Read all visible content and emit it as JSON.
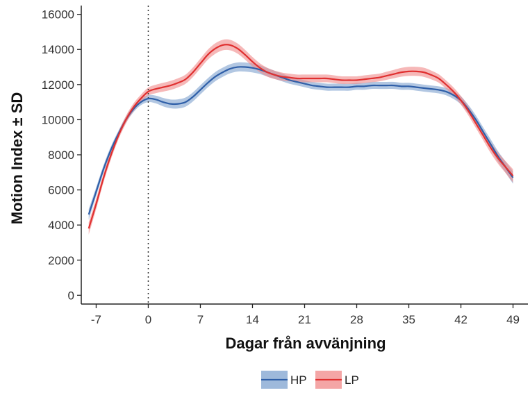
{
  "chart_data": {
    "type": "line",
    "xlabel": "Dagar från avvänjning",
    "ylabel": "Motion Index ± SD",
    "xlim": [
      -9,
      51
    ],
    "ylim": [
      -500,
      16500
    ],
    "x_ticks": [
      -7,
      0,
      7,
      14,
      21,
      28,
      35,
      42,
      49
    ],
    "y_ticks": [
      0,
      2000,
      4000,
      6000,
      8000,
      10000,
      12000,
      14000,
      16000
    ],
    "vline_x": 0,
    "grid": false,
    "legend_position": "bottom",
    "series": [
      {
        "name": "HP",
        "color": "#2f5fa8",
        "band_color": "#7ea1cf",
        "x": [
          -8,
          -7,
          -6,
          -5,
          -4,
          -3,
          -2,
          -1,
          0,
          1,
          2,
          3,
          4,
          5,
          6,
          7,
          8,
          9,
          10,
          11,
          12,
          13,
          14,
          15,
          16,
          17,
          18,
          19,
          20,
          21,
          22,
          23,
          24,
          25,
          26,
          27,
          28,
          29,
          30,
          31,
          32,
          33,
          34,
          35,
          36,
          37,
          38,
          39,
          40,
          41,
          42,
          43,
          44,
          45,
          46,
          47,
          48,
          49
        ],
        "y": [
          4600,
          5900,
          7200,
          8300,
          9200,
          10000,
          10600,
          11000,
          11200,
          11150,
          11000,
          10900,
          10900,
          11000,
          11300,
          11700,
          12100,
          12450,
          12700,
          12900,
          13000,
          13000,
          12950,
          12850,
          12700,
          12550,
          12400,
          12250,
          12150,
          12050,
          11950,
          11900,
          11850,
          11850,
          11850,
          11850,
          11900,
          11900,
          11950,
          11950,
          11950,
          11950,
          11900,
          11900,
          11850,
          11800,
          11750,
          11700,
          11600,
          11400,
          11100,
          10600,
          10000,
          9300,
          8600,
          7900,
          7300,
          6700
        ],
        "sd": [
          300,
          250,
          220,
          200,
          180,
          180,
          180,
          180,
          200,
          220,
          240,
          250,
          260,
          260,
          260,
          260,
          260,
          260,
          260,
          260,
          260,
          260,
          260,
          250,
          240,
          230,
          220,
          210,
          200,
          200,
          200,
          200,
          200,
          200,
          200,
          200,
          200,
          200,
          200,
          200,
          200,
          200,
          200,
          200,
          200,
          200,
          200,
          200,
          210,
          220,
          230,
          240,
          250,
          260,
          280,
          300,
          320,
          350
        ]
      },
      {
        "name": "LP",
        "color": "#e03030",
        "band_color": "#f08888",
        "x": [
          -8,
          -7,
          -6,
          -5,
          -4,
          -3,
          -2,
          -1,
          0,
          1,
          2,
          3,
          4,
          5,
          6,
          7,
          8,
          9,
          10,
          11,
          12,
          13,
          14,
          15,
          16,
          17,
          18,
          19,
          20,
          21,
          22,
          23,
          24,
          25,
          26,
          27,
          28,
          29,
          30,
          31,
          32,
          33,
          34,
          35,
          36,
          37,
          38,
          39,
          40,
          41,
          42,
          43,
          44,
          45,
          46,
          47,
          48,
          49
        ],
        "y": [
          3800,
          5200,
          6700,
          8000,
          9100,
          10000,
          10700,
          11200,
          11600,
          11750,
          11850,
          11950,
          12100,
          12300,
          12700,
          13200,
          13700,
          14050,
          14250,
          14250,
          14050,
          13700,
          13300,
          12950,
          12700,
          12550,
          12450,
          12400,
          12350,
          12350,
          12350,
          12350,
          12350,
          12300,
          12250,
          12250,
          12250,
          12300,
          12350,
          12400,
          12500,
          12600,
          12700,
          12750,
          12750,
          12700,
          12550,
          12350,
          12000,
          11600,
          11100,
          10500,
          9800,
          9100,
          8400,
          7800,
          7300,
          6800
        ],
        "sd": [
          350,
          300,
          260,
          240,
          220,
          220,
          220,
          220,
          230,
          240,
          250,
          260,
          260,
          260,
          270,
          280,
          290,
          300,
          300,
          300,
          290,
          280,
          270,
          260,
          250,
          240,
          230,
          220,
          220,
          220,
          220,
          220,
          220,
          220,
          220,
          220,
          220,
          220,
          220,
          220,
          230,
          240,
          250,
          260,
          260,
          260,
          250,
          240,
          240,
          240,
          250,
          260,
          270,
          280,
          300,
          320,
          340,
          380
        ]
      }
    ]
  }
}
